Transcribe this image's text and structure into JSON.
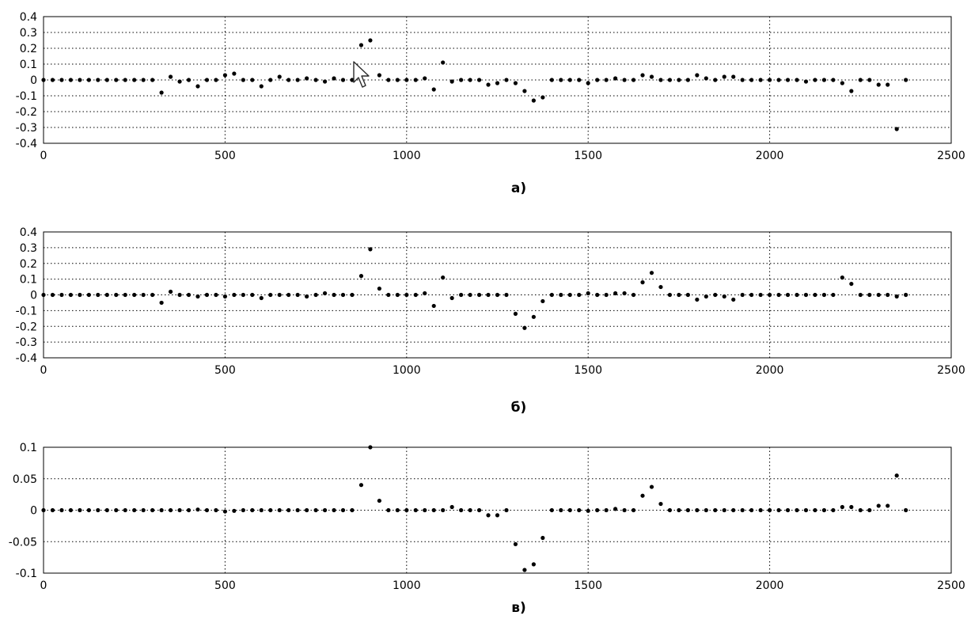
{
  "cursor": {
    "icon": "mouse-pointer-icon"
  },
  "chart_data": [
    {
      "type": "scatter",
      "caption": "а)",
      "title": "",
      "xlabel": "",
      "ylabel": "",
      "xlim": [
        0,
        2500
      ],
      "ylim": [
        -0.4,
        0.4
      ],
      "xticks": [
        0,
        500,
        1000,
        1500,
        2000,
        2500
      ],
      "xtick_labels": [
        "0",
        "500",
        "1000",
        "1500",
        "2000",
        "2500"
      ],
      "yticks": [
        0.4,
        0.3,
        0.2,
        0.1,
        0,
        -0.1,
        -0.2,
        -0.3,
        -0.4
      ],
      "ytick_labels": [
        "0.4",
        "0.3",
        "0.2",
        "0.1",
        "0",
        "-0.1",
        "-0.2",
        "-0.3",
        "-0.4"
      ],
      "grid": true,
      "points": [
        [
          0,
          0
        ],
        [
          25,
          0
        ],
        [
          50,
          0
        ],
        [
          75,
          0
        ],
        [
          100,
          0
        ],
        [
          125,
          0
        ],
        [
          150,
          0
        ],
        [
          175,
          0
        ],
        [
          200,
          0
        ],
        [
          225,
          0
        ],
        [
          250,
          0
        ],
        [
          275,
          0
        ],
        [
          300,
          0
        ],
        [
          325,
          -0.08
        ],
        [
          350,
          0.02
        ],
        [
          375,
          -0.01
        ],
        [
          400,
          0
        ],
        [
          425,
          -0.04
        ],
        [
          450,
          0
        ],
        [
          475,
          0
        ],
        [
          500,
          0.03
        ],
        [
          525,
          0.04
        ],
        [
          550,
          0
        ],
        [
          575,
          0
        ],
        [
          600,
          -0.04
        ],
        [
          625,
          0
        ],
        [
          650,
          0.02
        ],
        [
          675,
          0
        ],
        [
          700,
          0
        ],
        [
          725,
          0.01
        ],
        [
          750,
          0
        ],
        [
          775,
          -0.01
        ],
        [
          800,
          0.01
        ],
        [
          825,
          0
        ],
        [
          850,
          0
        ],
        [
          875,
          0.22
        ],
        [
          900,
          0.25
        ],
        [
          925,
          0.03
        ],
        [
          950,
          0
        ],
        [
          975,
          0
        ],
        [
          1000,
          0
        ],
        [
          1025,
          0
        ],
        [
          1050,
          0.01
        ],
        [
          1075,
          -0.06
        ],
        [
          1100,
          0.11
        ],
        [
          1125,
          -0.01
        ],
        [
          1150,
          0
        ],
        [
          1175,
          0
        ],
        [
          1200,
          0
        ],
        [
          1225,
          -0.03
        ],
        [
          1250,
          -0.02
        ],
        [
          1275,
          0
        ],
        [
          1300,
          -0.02
        ],
        [
          1325,
          -0.07
        ],
        [
          1350,
          -0.13
        ],
        [
          1375,
          -0.11
        ],
        [
          1400,
          0
        ],
        [
          1425,
          0
        ],
        [
          1450,
          0
        ],
        [
          1475,
          0
        ],
        [
          1500,
          -0.02
        ],
        [
          1525,
          0
        ],
        [
          1550,
          0
        ],
        [
          1575,
          0.01
        ],
        [
          1600,
          0
        ],
        [
          1625,
          0
        ],
        [
          1650,
          0.03
        ],
        [
          1675,
          0.02
        ],
        [
          1700,
          0
        ],
        [
          1725,
          0
        ],
        [
          1750,
          0
        ],
        [
          1775,
          0
        ],
        [
          1800,
          0.03
        ],
        [
          1825,
          0.01
        ],
        [
          1850,
          0
        ],
        [
          1875,
          0.02
        ],
        [
          1900,
          0.02
        ],
        [
          1925,
          0
        ],
        [
          1950,
          0
        ],
        [
          1975,
          0
        ],
        [
          2000,
          0
        ],
        [
          2025,
          0
        ],
        [
          2050,
          0
        ],
        [
          2075,
          0
        ],
        [
          2100,
          -0.01
        ],
        [
          2125,
          0
        ],
        [
          2150,
          0
        ],
        [
          2175,
          0
        ],
        [
          2200,
          -0.02
        ],
        [
          2225,
          -0.07
        ],
        [
          2250,
          0
        ],
        [
          2275,
          0
        ],
        [
          2300,
          -0.03
        ],
        [
          2325,
          -0.03
        ],
        [
          2350,
          -0.31
        ],
        [
          2375,
          0
        ]
      ]
    },
    {
      "type": "scatter",
      "caption": "б)",
      "title": "",
      "xlabel": "",
      "ylabel": "",
      "xlim": [
        0,
        2500
      ],
      "ylim": [
        -0.4,
        0.4
      ],
      "xticks": [
        0,
        500,
        1000,
        1500,
        2000,
        2500
      ],
      "xtick_labels": [
        "0",
        "500",
        "1000",
        "1500",
        "2000",
        "2500"
      ],
      "yticks": [
        0.4,
        0.3,
        0.2,
        0.1,
        0,
        -0.1,
        -0.2,
        -0.3,
        -0.4
      ],
      "ytick_labels": [
        "0.4",
        "0.3",
        "0.2",
        "0.1",
        "0",
        "-0.1",
        "-0.2",
        "-0.3",
        "-0.4"
      ],
      "grid": true,
      "points": [
        [
          0,
          0
        ],
        [
          25,
          0
        ],
        [
          50,
          0
        ],
        [
          75,
          0
        ],
        [
          100,
          0
        ],
        [
          125,
          0
        ],
        [
          150,
          0
        ],
        [
          175,
          0
        ],
        [
          200,
          0
        ],
        [
          225,
          0
        ],
        [
          250,
          0
        ],
        [
          275,
          0
        ],
        [
          300,
          0
        ],
        [
          325,
          -0.05
        ],
        [
          350,
          0.02
        ],
        [
          375,
          0
        ],
        [
          400,
          0
        ],
        [
          425,
          -0.01
        ],
        [
          450,
          0
        ],
        [
          475,
          0
        ],
        [
          500,
          -0.01
        ],
        [
          525,
          0
        ],
        [
          550,
          0
        ],
        [
          575,
          0
        ],
        [
          600,
          -0.02
        ],
        [
          625,
          0
        ],
        [
          650,
          0
        ],
        [
          675,
          0
        ],
        [
          700,
          0
        ],
        [
          725,
          -0.01
        ],
        [
          750,
          0
        ],
        [
          775,
          0.01
        ],
        [
          800,
          0
        ],
        [
          825,
          0
        ],
        [
          850,
          0
        ],
        [
          875,
          0.12
        ],
        [
          900,
          0.29
        ],
        [
          925,
          0.04
        ],
        [
          950,
          0
        ],
        [
          975,
          0
        ],
        [
          1000,
          0
        ],
        [
          1025,
          0
        ],
        [
          1050,
          0.01
        ],
        [
          1075,
          -0.07
        ],
        [
          1100,
          0.11
        ],
        [
          1125,
          -0.02
        ],
        [
          1150,
          0
        ],
        [
          1175,
          0
        ],
        [
          1200,
          0
        ],
        [
          1225,
          0
        ],
        [
          1250,
          0
        ],
        [
          1275,
          0
        ],
        [
          1300,
          -0.12
        ],
        [
          1325,
          -0.21
        ],
        [
          1350,
          -0.14
        ],
        [
          1375,
          -0.04
        ],
        [
          1400,
          0
        ],
        [
          1425,
          0
        ],
        [
          1450,
          0
        ],
        [
          1475,
          0
        ],
        [
          1500,
          0.01
        ],
        [
          1525,
          0
        ],
        [
          1550,
          0
        ],
        [
          1575,
          0.01
        ],
        [
          1600,
          0.01
        ],
        [
          1625,
          0
        ],
        [
          1650,
          0.08
        ],
        [
          1675,
          0.14
        ],
        [
          1700,
          0.05
        ],
        [
          1725,
          0
        ],
        [
          1750,
          0
        ],
        [
          1775,
          0
        ],
        [
          1800,
          -0.03
        ],
        [
          1825,
          -0.01
        ],
        [
          1850,
          0
        ],
        [
          1875,
          -0.01
        ],
        [
          1900,
          -0.03
        ],
        [
          1925,
          0
        ],
        [
          1950,
          0
        ],
        [
          1975,
          0
        ],
        [
          2000,
          0
        ],
        [
          2025,
          0
        ],
        [
          2050,
          0
        ],
        [
          2075,
          0
        ],
        [
          2100,
          0
        ],
        [
          2125,
          0
        ],
        [
          2150,
          0
        ],
        [
          2175,
          0
        ],
        [
          2200,
          0.11
        ],
        [
          2225,
          0.07
        ],
        [
          2250,
          0
        ],
        [
          2275,
          0
        ],
        [
          2300,
          0
        ],
        [
          2325,
          0
        ],
        [
          2350,
          -0.01
        ],
        [
          2375,
          0
        ]
      ]
    },
    {
      "type": "scatter",
      "caption": "в)",
      "title": "",
      "xlabel": "",
      "ylabel": "",
      "xlim": [
        0,
        2500
      ],
      "ylim": [
        -0.1,
        0.1
      ],
      "xticks": [
        0,
        500,
        1000,
        1500,
        2000,
        2500
      ],
      "xtick_labels": [
        "0",
        "500",
        "1000",
        "1500",
        "2000",
        "2500"
      ],
      "yticks": [
        0.1,
        0.05,
        0,
        -0.05,
        -0.1
      ],
      "ytick_labels": [
        "0.1",
        "0.05",
        "0",
        "-0.05",
        "-0.1"
      ],
      "grid": true,
      "points": [
        [
          0,
          0
        ],
        [
          25,
          0
        ],
        [
          50,
          0
        ],
        [
          75,
          0
        ],
        [
          100,
          0
        ],
        [
          125,
          0
        ],
        [
          150,
          0
        ],
        [
          175,
          0
        ],
        [
          200,
          0
        ],
        [
          225,
          0
        ],
        [
          250,
          0
        ],
        [
          275,
          0
        ],
        [
          300,
          0
        ],
        [
          325,
          0
        ],
        [
          350,
          0
        ],
        [
          375,
          0
        ],
        [
          400,
          0
        ],
        [
          425,
          0.001
        ],
        [
          450,
          0
        ],
        [
          475,
          0
        ],
        [
          500,
          -0.002
        ],
        [
          525,
          -0.001
        ],
        [
          550,
          0
        ],
        [
          575,
          0
        ],
        [
          600,
          0
        ],
        [
          625,
          0
        ],
        [
          650,
          0
        ],
        [
          675,
          0
        ],
        [
          700,
          0
        ],
        [
          725,
          0
        ],
        [
          750,
          0
        ],
        [
          775,
          0
        ],
        [
          800,
          0
        ],
        [
          825,
          0
        ],
        [
          850,
          0
        ],
        [
          875,
          0.04
        ],
        [
          900,
          0.1
        ],
        [
          925,
          0.015
        ],
        [
          950,
          0
        ],
        [
          975,
          0
        ],
        [
          1000,
          0
        ],
        [
          1025,
          0
        ],
        [
          1050,
          0
        ],
        [
          1075,
          0
        ],
        [
          1100,
          0
        ],
        [
          1125,
          0.005
        ],
        [
          1150,
          0
        ],
        [
          1175,
          0
        ],
        [
          1200,
          0
        ],
        [
          1225,
          -0.008
        ],
        [
          1250,
          -0.008
        ],
        [
          1275,
          0
        ],
        [
          1300,
          -0.054
        ],
        [
          1325,
          -0.095
        ],
        [
          1350,
          -0.086
        ],
        [
          1375,
          -0.044
        ],
        [
          1400,
          0
        ],
        [
          1425,
          0
        ],
        [
          1450,
          0
        ],
        [
          1475,
          0
        ],
        [
          1500,
          -0.001
        ],
        [
          1525,
          0
        ],
        [
          1550,
          0
        ],
        [
          1575,
          0.002
        ],
        [
          1600,
          0
        ],
        [
          1625,
          0
        ],
        [
          1650,
          0.023
        ],
        [
          1675,
          0.037
        ],
        [
          1700,
          0.01
        ],
        [
          1725,
          0
        ],
        [
          1750,
          0
        ],
        [
          1775,
          0
        ],
        [
          1800,
          0
        ],
        [
          1825,
          0
        ],
        [
          1850,
          0
        ],
        [
          1875,
          0
        ],
        [
          1900,
          0
        ],
        [
          1925,
          0
        ],
        [
          1950,
          0
        ],
        [
          1975,
          0
        ],
        [
          2000,
          0
        ],
        [
          2025,
          0
        ],
        [
          2050,
          0
        ],
        [
          2075,
          0
        ],
        [
          2100,
          0
        ],
        [
          2125,
          0
        ],
        [
          2150,
          0
        ],
        [
          2175,
          0
        ],
        [
          2200,
          0.005
        ],
        [
          2225,
          0.005
        ],
        [
          2250,
          0
        ],
        [
          2275,
          0
        ],
        [
          2300,
          0.007
        ],
        [
          2325,
          0.007
        ],
        [
          2350,
          0.055
        ],
        [
          2375,
          0
        ]
      ]
    }
  ]
}
